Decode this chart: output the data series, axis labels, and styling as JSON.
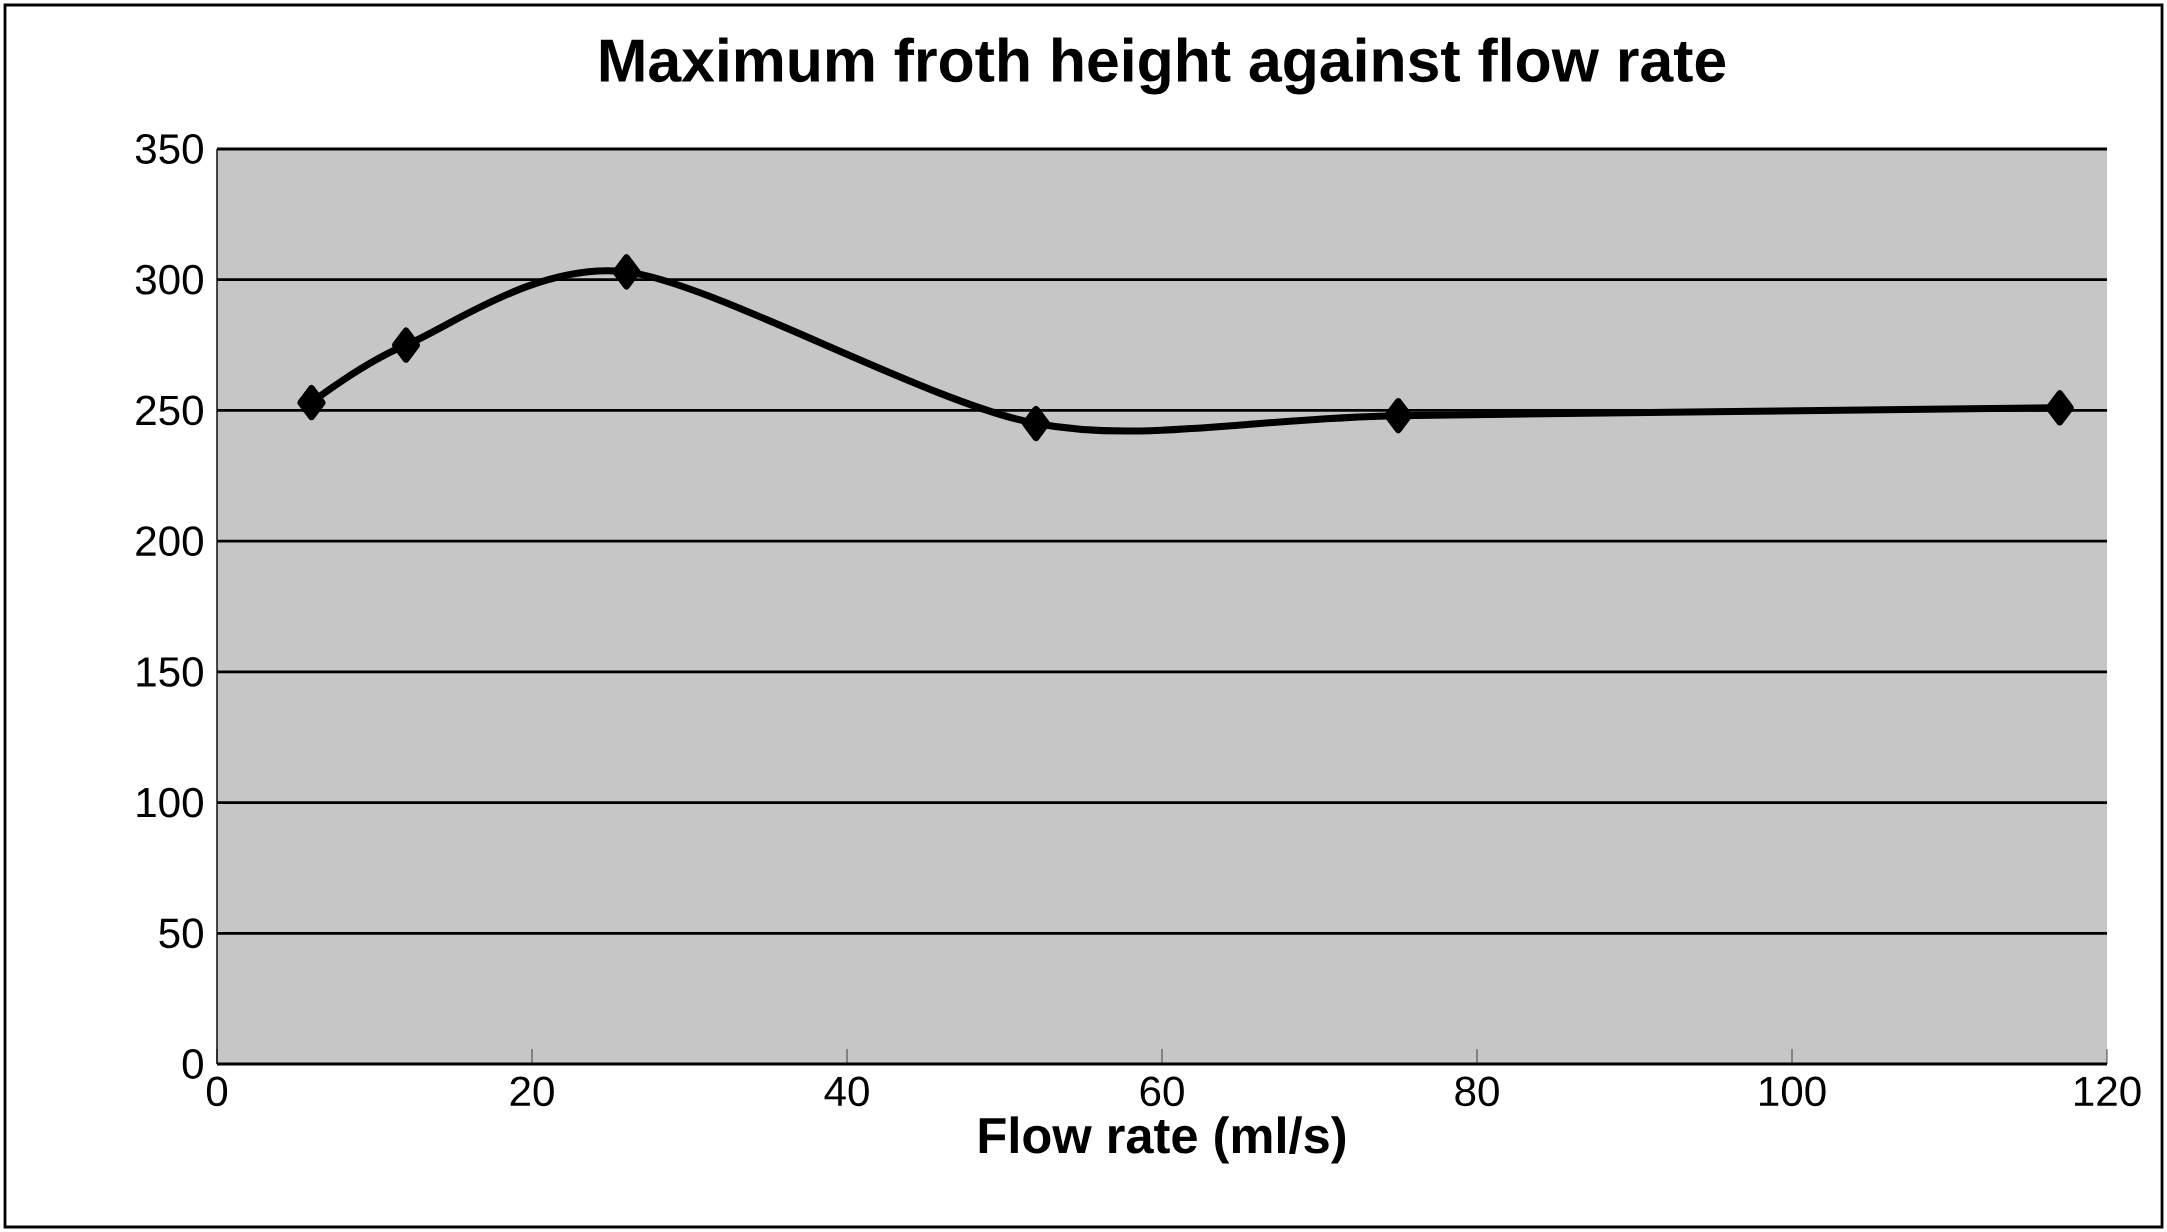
{
  "chart_data": {
    "type": "line",
    "title": "Maximum froth height against flow rate",
    "xlabel": "Flow rate (ml/s)",
    "x": [
      6,
      12,
      26,
      52,
      75,
      117
    ],
    "values": [
      253,
      275,
      303,
      245,
      248,
      251
    ],
    "color": "#000000",
    "xlim": [
      0,
      120
    ],
    "xticks": [
      0,
      20,
      40,
      60,
      80,
      100,
      120
    ],
    "ylim": [
      0,
      350
    ],
    "yticks": [
      0,
      50,
      100,
      150,
      200,
      250,
      300,
      350
    ],
    "grid": "y",
    "marker": "diamond",
    "line_style": "solid"
  }
}
